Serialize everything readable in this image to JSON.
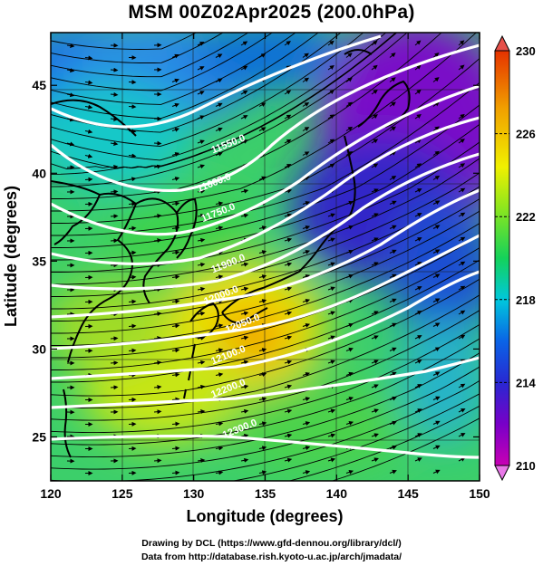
{
  "title": "MSM 00Z02Apr2025 (200.0hPa)",
  "x_axis": {
    "label": "Longitude (degrees)",
    "range": [
      120,
      150
    ],
    "ticks": [
      "120",
      "125",
      "130",
      "135",
      "140",
      "145",
      "150"
    ],
    "tick_values": [
      120,
      125,
      130,
      135,
      140,
      145,
      150
    ]
  },
  "y_axis": {
    "label": "Latitude  (degrees)",
    "range": [
      22.5,
      48
    ],
    "ticks": [
      "25",
      "30",
      "35",
      "40",
      "45"
    ],
    "tick_values": [
      25,
      30,
      35,
      40,
      45
    ]
  },
  "colorbar": {
    "range": [
      210,
      230
    ],
    "ticks": [
      "230",
      "226",
      "222",
      "218",
      "214",
      "210"
    ],
    "tick_values": [
      230,
      226,
      222,
      218,
      214,
      210
    ],
    "colormap": [
      "#c800b4",
      "#7800c8",
      "#2828d2",
      "#0a64e6",
      "#00c8dc",
      "#14d25a",
      "#8ce61e",
      "#f0f000",
      "#f0a000",
      "#e63200"
    ]
  },
  "contours": [
    {
      "label": "11550.0",
      "lon": 132.5,
      "lat": 41.5
    },
    {
      "label": "11600.0",
      "lon": 131.5,
      "lat": 39.3
    },
    {
      "label": "11750.0",
      "lon": 131.8,
      "lat": 37.6
    },
    {
      "label": "11900.0",
      "lon": 132.5,
      "lat": 34.7
    },
    {
      "label": "12000.0",
      "lon": 132.0,
      "lat": 32.9
    },
    {
      "label": "12050.0",
      "lon": 133.5,
      "lat": 31.3
    },
    {
      "label": "12100.0",
      "lon": 132.5,
      "lat": 29.5
    },
    {
      "label": "12200.0",
      "lon": 132.5,
      "lat": 27.6
    },
    {
      "label": "12300.0",
      "lon": 133.3,
      "lat": 25.3
    }
  ],
  "credits": {
    "line1": "Drawing by DCL (https://www.gfd-dennou.org/library/dcl/)",
    "line2": "Data from http://database.rish.kyoto-u.ac.jp/arch/jmadata/"
  }
}
